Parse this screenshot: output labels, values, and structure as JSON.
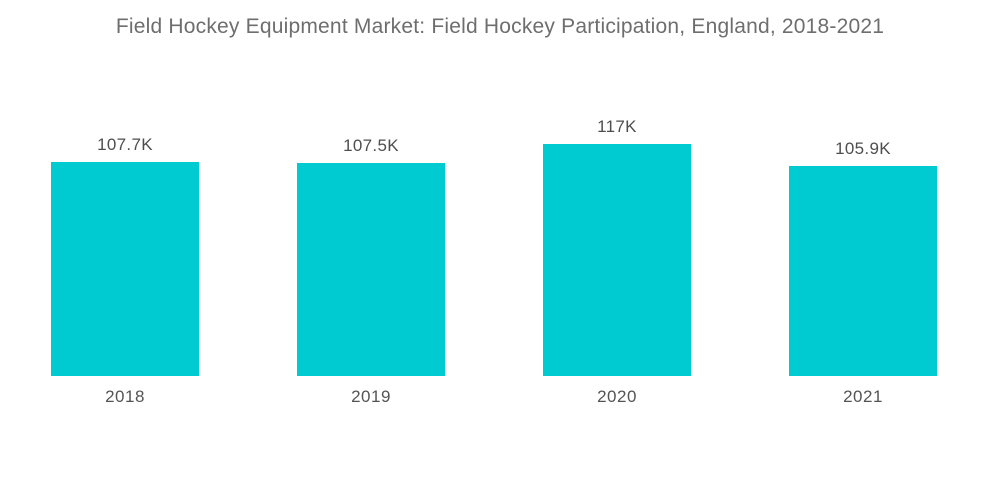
{
  "page": {
    "background_color": "#ffffff"
  },
  "colors": {
    "bar": "#00cbd1",
    "title_text": "#6e6e6e",
    "label_text": "#4e4e4e"
  },
  "chart_data": {
    "type": "bar",
    "title": "Field Hockey Equipment Market: Field Hockey Participation, England, 2018-2021",
    "categories": [
      "2018",
      "2019",
      "2020",
      "2021"
    ],
    "values": [
      107700,
      107500,
      117000,
      105900
    ],
    "value_labels": [
      "107.7K",
      "107.5K",
      "117K",
      "105.9K"
    ],
    "series_name": "Field Hockey Participation",
    "xlabel": "",
    "ylabel": "",
    "ylim": [
      0,
      117000
    ],
    "grid": false,
    "legend": false,
    "axes_visible": false,
    "bar_color": "#00cbd1"
  }
}
